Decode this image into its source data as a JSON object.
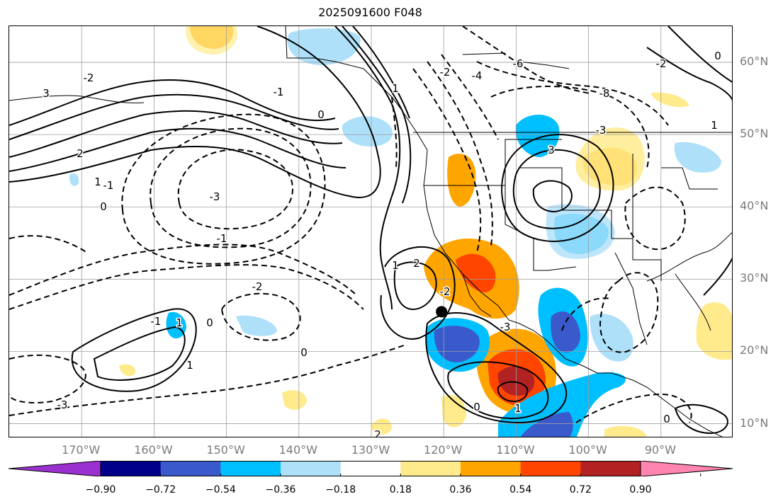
{
  "title": "2025091600 F048",
  "lat_labels": [
    "60°N",
    "50°N",
    "40°N",
    "30°N",
    "20°N",
    "10°N"
  ],
  "lon_labels": [
    "170°W",
    "160°W",
    "150°W",
    "140°W",
    "130°W",
    "120°W",
    "110°W",
    "100°W",
    "90°W"
  ],
  "colorbar": {
    "ticks": [
      "−0.90",
      "−0.72",
      "−0.54",
      "−0.36",
      "−0.18",
      "0.18",
      "0.36",
      "0.54",
      "0.72",
      "0.90"
    ],
    "colors": [
      "#9b30d0",
      "#00008b",
      "#3a5acc",
      "#00bfff",
      "#aee0fa",
      "#ffffff",
      "#ffeb8c",
      "#ffa500",
      "#ff4500",
      "#b22222",
      "#ff85b0"
    ]
  },
  "contour_labels": [
    "-2",
    "-3",
    "3",
    "2",
    "1",
    "0",
    "-1",
    "0",
    "1",
    "-2",
    "-3",
    "2",
    "1",
    "0",
    "-1",
    "-2",
    "-4",
    "-6",
    "-8",
    "-3",
    "3",
    "-2",
    "0",
    "1",
    "-1",
    "0",
    "1",
    "2",
    "-2",
    "-3",
    "1",
    "0",
    "0",
    "1",
    "-1"
  ],
  "marker": {
    "lon": -120.3,
    "lat": 25.5
  }
}
